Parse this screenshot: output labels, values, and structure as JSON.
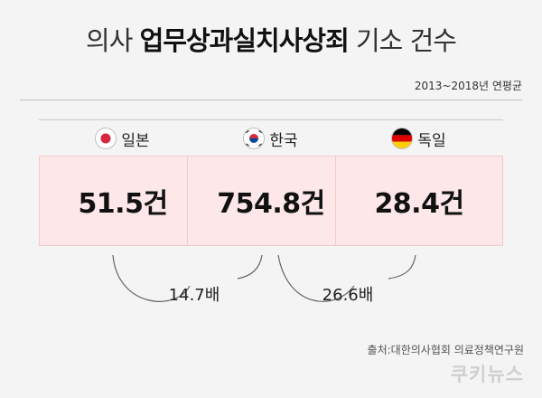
{
  "header": {
    "title_prefix": "의사",
    "title_emphasis": "업무상과실치사상죄",
    "title_suffix": "기소 건수",
    "subtitle": "2013~2018년 연평균"
  },
  "chart_data": {
    "type": "table",
    "title": "의사 업무상과실치사상죄 기소 건수",
    "subtitle": "2013~2018년 연평균",
    "categories": [
      "일본",
      "한국",
      "독일"
    ],
    "values": [
      51.5,
      754.8,
      28.4
    ],
    "unit": "건",
    "value_labels": [
      "51.5건",
      "754.8건",
      "28.4건"
    ],
    "ratios": [
      {
        "from": "일본",
        "to": "한국",
        "label": "14.7배"
      },
      {
        "from": "한국",
        "to": "독일",
        "label": "26.6배"
      }
    ]
  },
  "flags": [
    "japan-flag",
    "korea-flag",
    "germany-flag"
  ],
  "colors": {
    "box_fill": "#fde7e8",
    "box_border": "#f5c9cc",
    "background": "#f4f4f4"
  },
  "footer": {
    "source": "출처:대한의사협회 의료정책연구원",
    "logo": "쿠키뉴스"
  }
}
